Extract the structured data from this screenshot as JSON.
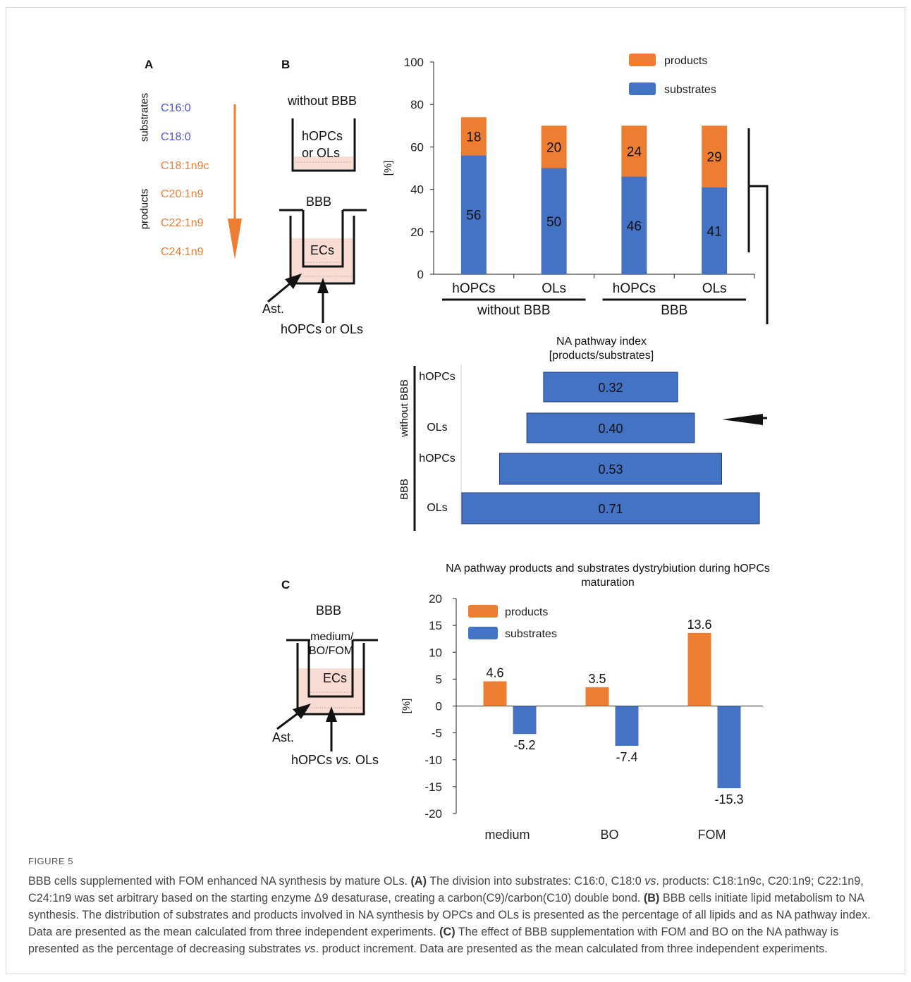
{
  "panel_labels": {
    "a": "A",
    "b": "B",
    "c": "C"
  },
  "panel_a": {
    "substrates_label": "substrates",
    "products_label": "products",
    "substrates": [
      "C16:0",
      "C18:0"
    ],
    "products": [
      "C18:1n9c",
      "C20:1n9",
      "C22:1n9",
      "C24:1n9"
    ],
    "colors": {
      "substrate": "#4a52e0",
      "product": "#ed7d31"
    }
  },
  "panel_b_diagram": {
    "without_bbb_title": "without BBB",
    "well_label_line1": "hOPCs",
    "well_label_line2": "or OLs",
    "bbb_title": "BBB",
    "ecs_label": "ECs",
    "ast_label": "Ast.",
    "bottom_label": "hOPCs or OLs"
  },
  "panel_c_diagram": {
    "bbb_title": "BBB",
    "medium_line1": "medium/",
    "medium_line2": "BO/FOM",
    "ecs_label": "ECs",
    "ast_label": "Ast.",
    "bottom_label_pre": "hOPCs ",
    "bottom_label_em": "vs.",
    "bottom_label_post": " OLs"
  },
  "chart_data": [
    {
      "id": "stacked",
      "type": "bar",
      "stacked": true,
      "ylabel": "[%]",
      "ylim": [
        0,
        100
      ],
      "yticks": [
        0,
        20,
        40,
        60,
        80,
        100
      ],
      "categories": [
        "hOPCs",
        "OLs",
        "hOPCs",
        "OLs"
      ],
      "groups": [
        {
          "label": "without BBB",
          "span": [
            0,
            1
          ]
        },
        {
          "label": "BBB",
          "span": [
            2,
            3
          ]
        }
      ],
      "series": [
        {
          "name": "substrates",
          "color": "#4472c4",
          "values": [
            56,
            50,
            46,
            41
          ]
        },
        {
          "name": "products",
          "color": "#ed7d31",
          "values": [
            18,
            20,
            24,
            29
          ]
        }
      ],
      "legend": "top-right",
      "grid": false
    },
    {
      "id": "index",
      "type": "bar",
      "orientation": "horizontal",
      "title_line1": "NA pathway index",
      "title_line2": "[products/substrates]",
      "groups": [
        {
          "label": "without BBB",
          "rows": [
            0,
            1
          ]
        },
        {
          "label": "BBB",
          "rows": [
            2,
            3
          ]
        }
      ],
      "categories": [
        "hOPCs",
        "OLs",
        "hOPCs",
        "OLs"
      ],
      "values": [
        0.32,
        0.4,
        0.53,
        0.71
      ],
      "color": "#4472c4"
    },
    {
      "id": "distribution",
      "type": "bar",
      "title": "NA pathway products and substrates dystrybiution during hOPCs maturation",
      "ylabel": "[%]",
      "ylim": [
        -20,
        20
      ],
      "yticks": [
        -20,
        -15,
        -10,
        -5,
        0,
        5,
        10,
        15,
        20
      ],
      "categories": [
        "medium",
        "BO",
        "FOM"
      ],
      "series": [
        {
          "name": "products",
          "color": "#ed7d31",
          "values": [
            4.6,
            3.5,
            13.6
          ]
        },
        {
          "name": "substrates",
          "color": "#4472c4",
          "values": [
            -5.2,
            -7.4,
            -15.3
          ]
        }
      ],
      "legend": "top-left",
      "grid": false
    }
  ],
  "caption": {
    "figure_label": "FIGURE 5",
    "s1": "BBB cells supplemented with FOM enhanced NA synthesis by mature OLs. ",
    "a_tag": "(A)",
    "s2": " The division into substrates: C16:0, C18:0 ",
    "vs1": "vs",
    "s3": ". products: C18:1n9c, C20:1n9; C22:1n9, C24:1n9 was set arbitrary based on the starting enzyme Δ9 desaturase, creating a carbon(C9)/carbon(C10) double bond. ",
    "b_tag": "(B)",
    "s4": " BBB cells initiate lipid metabolism to NA synthesis. The distribution of substrates and products involved in NA synthesis by OPCs and OLs is presented as the percentage of all lipids and as NA pathway index. Data are presented as the mean calculated from three independent experiments. ",
    "c_tag": "(C)",
    "s5": " The effect of BBB supplementation with FOM and BO on the NA pathway is presented as the percentage of decreasing substrates ",
    "vs2": "vs",
    "s6": ". product increment. Data are presented as the mean calculated from three independent experiments."
  }
}
